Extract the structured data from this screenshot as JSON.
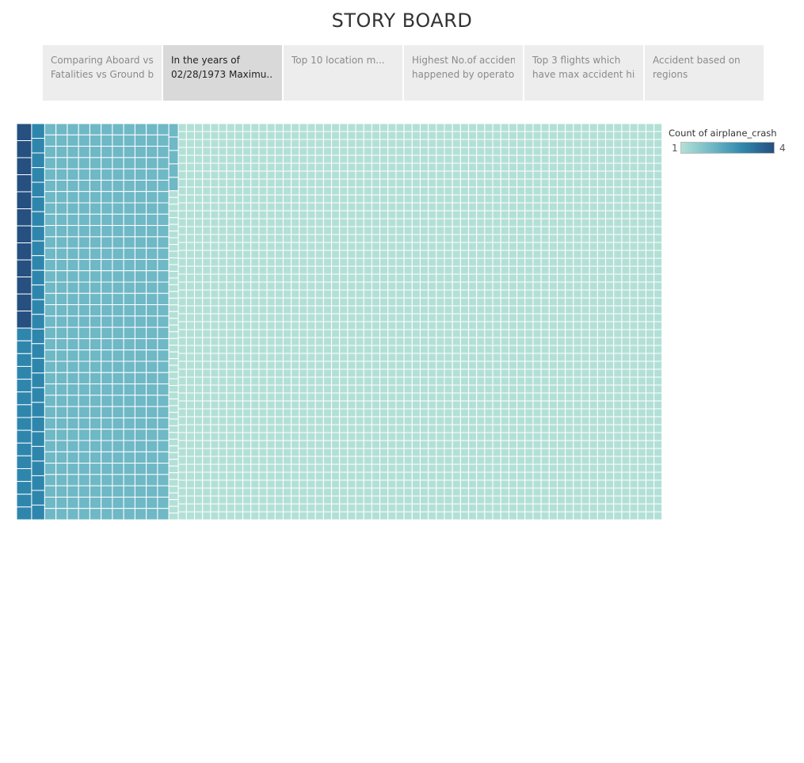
{
  "header": {
    "title": "STORY BOARD"
  },
  "tabs": [
    {
      "line1": "Comparing Aboard vs",
      "line2": "Fatalities vs Ground b..",
      "active": false
    },
    {
      "line1": "In the years of",
      "line2": "02/28/1973 Maximu..",
      "active": true
    },
    {
      "line1": "Top 10 location m...",
      "line2": "",
      "active": false
    },
    {
      "line1": "Highest No.of accidend",
      "line2": "happened by operators",
      "active": false
    },
    {
      "line1": "Top 3 flights which",
      "line2": "have max accident his..",
      "active": false
    },
    {
      "line1": "Accident based on",
      "line2": "regions",
      "active": false
    }
  ],
  "legend": {
    "title": "Count of airplane_crash",
    "min": "1",
    "max": "4"
  },
  "colors": {
    "c1": "#b3e0d6",
    "c2": "#6fb8c6",
    "c3": "#2f86ac",
    "c4": "#25507f",
    "cell_border": "#ffffff"
  },
  "chart_data": {
    "type": "treemap",
    "measure": "Count of airplane_crash",
    "color_range": [
      1,
      4
    ],
    "groups": [
      {
        "value": 4,
        "count": 12
      },
      {
        "value": 3,
        "count": 42
      },
      {
        "value": 2,
        "count": 390
      },
      {
        "value": 1,
        "count": 3050
      }
    ]
  }
}
